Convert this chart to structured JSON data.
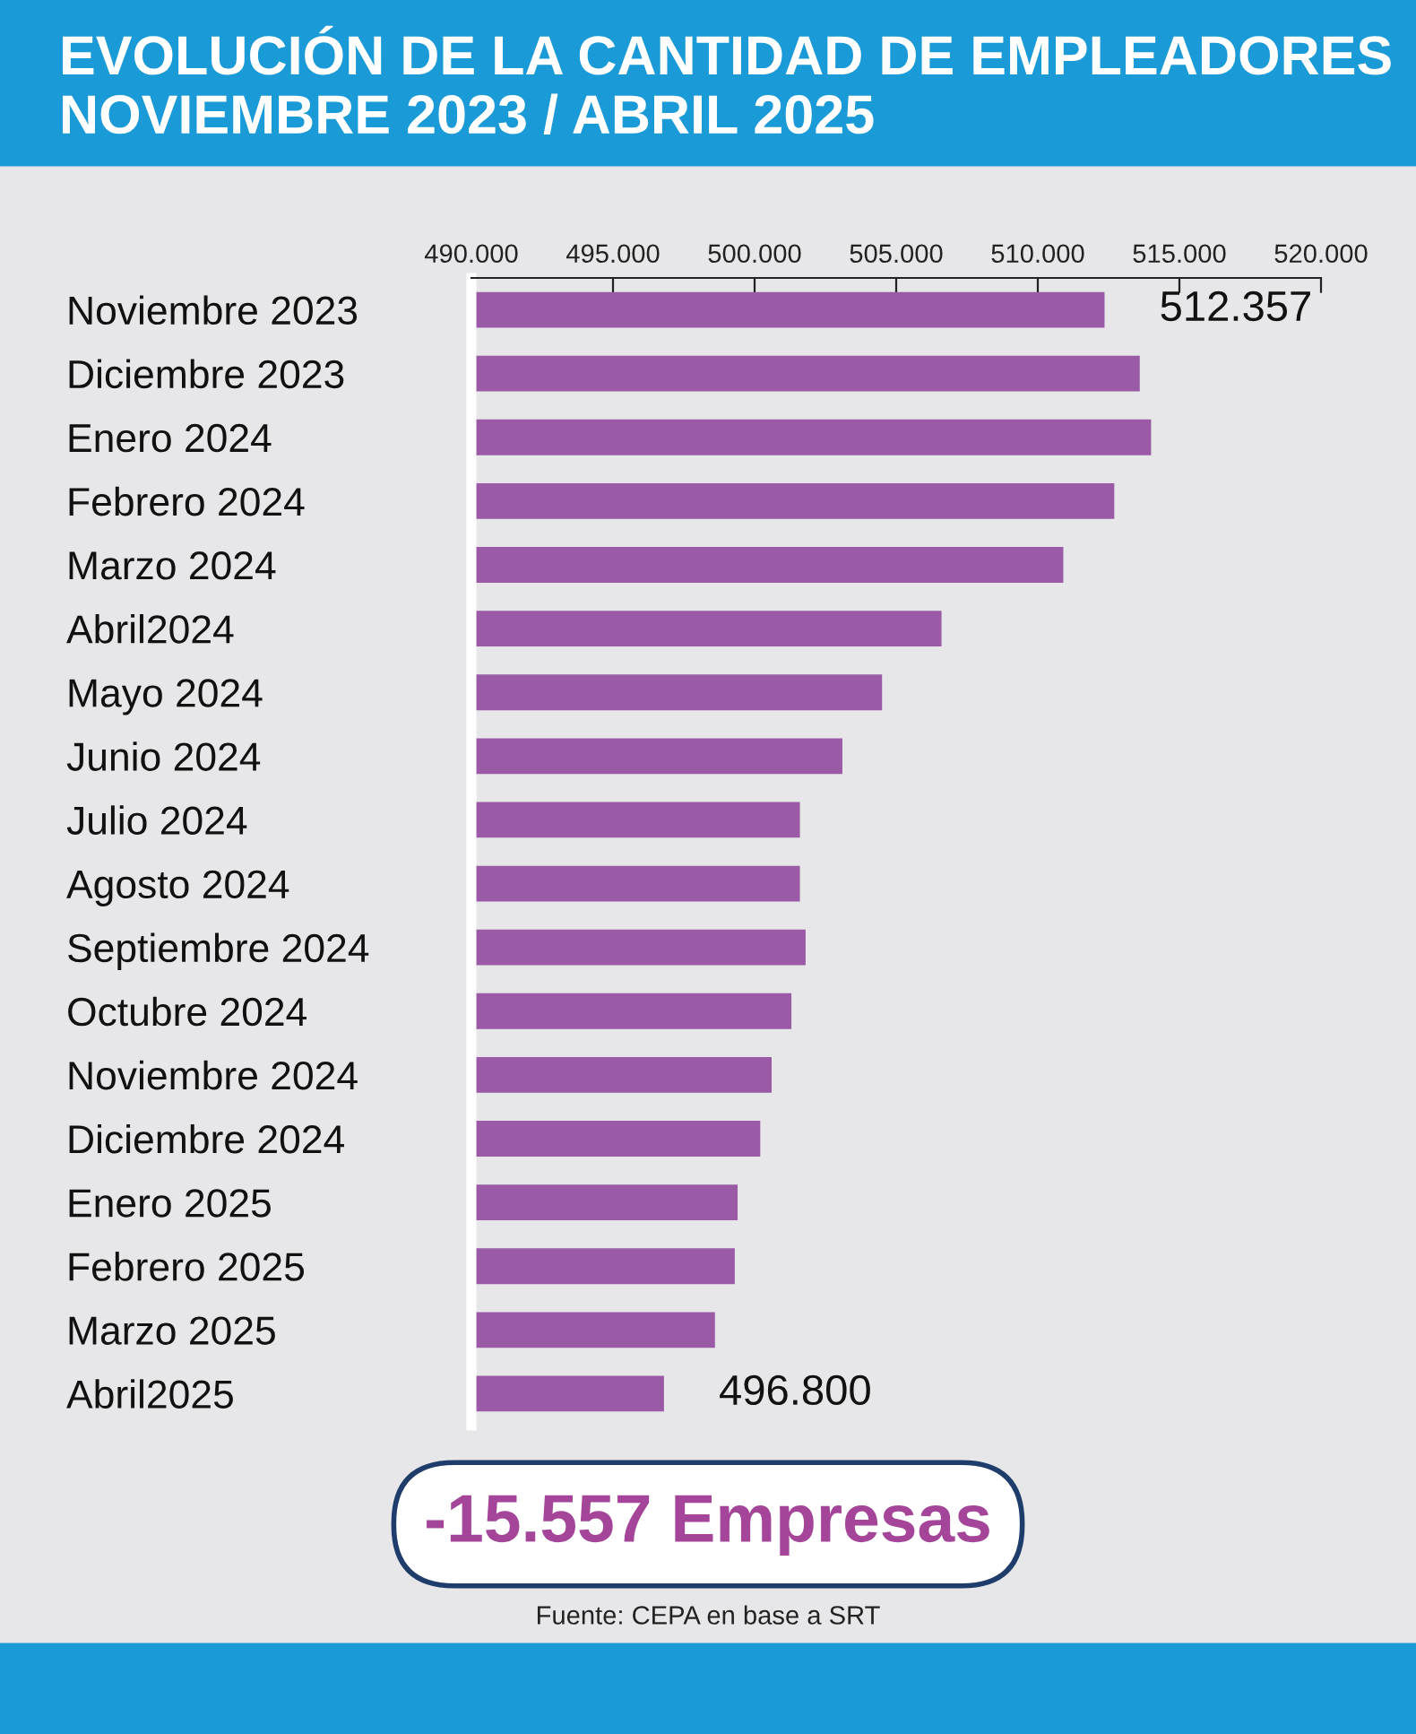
{
  "chart_data": {
    "type": "bar",
    "orientation": "horizontal",
    "title": "EVOLUCIÓN DE LA CANTIDAD DE EMPLEADORES\nNOVIEMBRE 2023 / ABRIL 2025",
    "categories": [
      "Noviembre 2023",
      "Diciembre 2023",
      "Enero 2024",
      "Febrero 2024",
      "Marzo 2024",
      "Abril2024",
      "Mayo 2024",
      "Junio 2024",
      "Julio 2024",
      "Agosto 2024",
      "Septiembre 2024",
      "Octubre 2024",
      "Noviembre 2024",
      "Diciembre 2024",
      "Enero 2025",
      "Febrero 2025",
      "Marzo 2025",
      "Abril2025"
    ],
    "values": [
      512357,
      513600,
      514000,
      512700,
      510900,
      506600,
      504500,
      503100,
      501600,
      501600,
      501800,
      501300,
      500600,
      500200,
      499400,
      499300,
      498600,
      496800
    ],
    "value_labels": [
      "512.357",
      null,
      null,
      null,
      null,
      null,
      null,
      null,
      null,
      null,
      null,
      null,
      null,
      null,
      null,
      null,
      null,
      "496.800"
    ],
    "color": "#9a5aa6",
    "xlim": [
      490000,
      520000
    ],
    "xticks": [
      {
        "value": 490000,
        "label": "490.000"
      },
      {
        "value": 495000,
        "label": "495.000"
      },
      {
        "value": 500000,
        "label": "500.000"
      },
      {
        "value": 505000,
        "label": "505.000"
      },
      {
        "value": 510000,
        "label": "510.000"
      },
      {
        "value": 515000,
        "label": "515.000"
      },
      {
        "value": 520000,
        "label": "520.000"
      }
    ],
    "annotations": [
      "-15.557 Empresas",
      "Fuente: CEPA en base a SRT"
    ],
    "grid": false,
    "legend": false
  }
}
